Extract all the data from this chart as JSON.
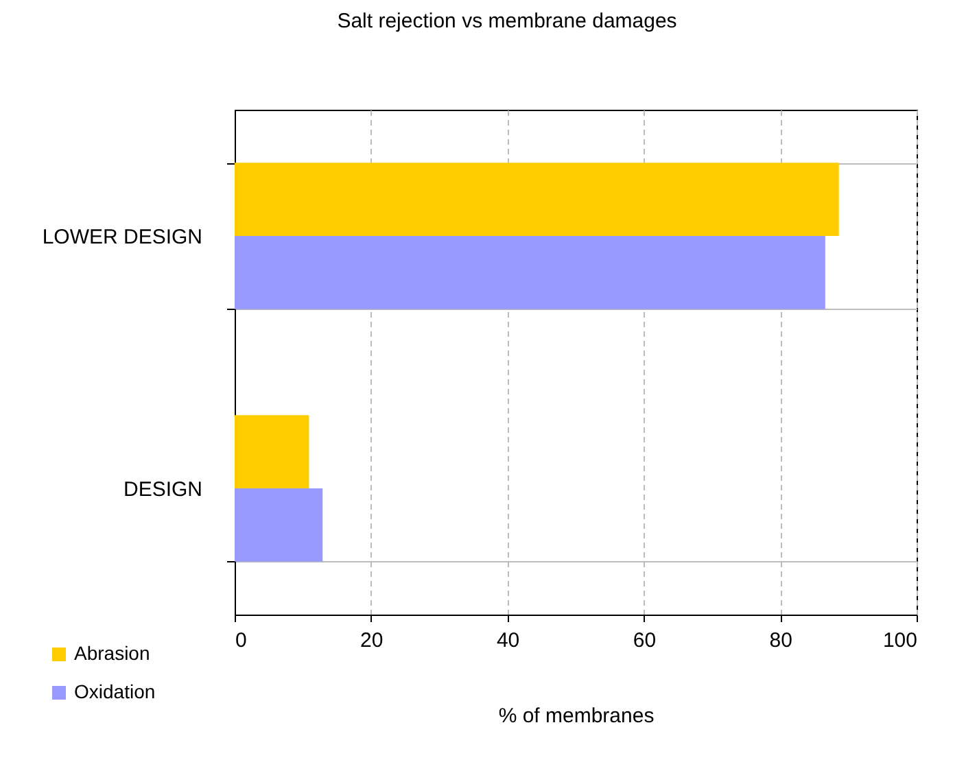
{
  "chart_data": {
    "type": "bar",
    "orientation": "horizontal",
    "title": "Salt rejection vs membrane damages",
    "xlabel": "% of membranes",
    "categories": [
      "LOWER DESIGN",
      "DESIGN"
    ],
    "series": [
      {
        "name": "Abrasion",
        "color": "#ffcc00",
        "values": [
          88.6,
          10.9
        ]
      },
      {
        "name": "Oxidation",
        "color": "#9999ff",
        "values": [
          86.6,
          12.9
        ]
      }
    ],
    "xlim": [
      0,
      100
    ],
    "xticks": [
      0,
      20,
      40,
      60,
      80,
      100
    ],
    "grid": "x",
    "legend": "bottom left"
  }
}
